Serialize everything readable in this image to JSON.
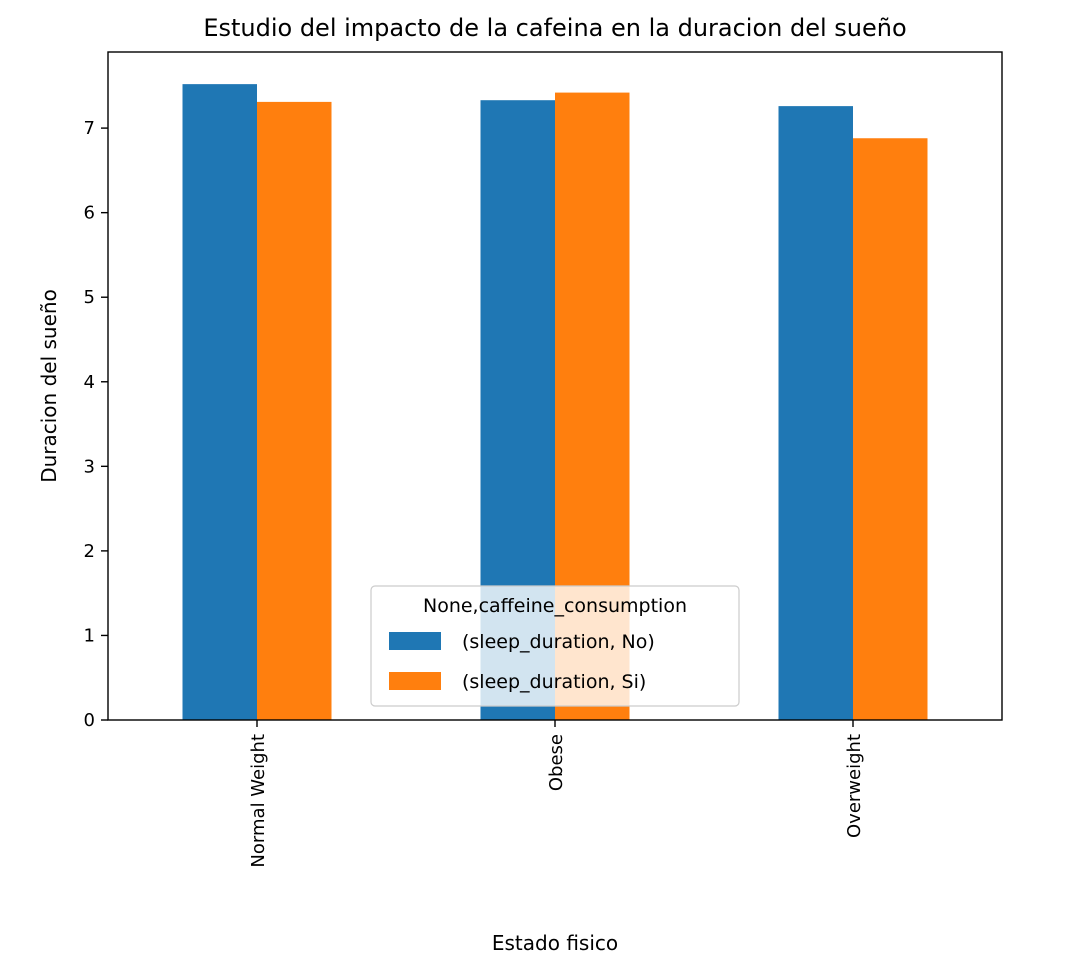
{
  "chart_data": {
    "type": "bar",
    "title": "Estudio del impacto de la cafeina en la duracion del sueño",
    "xlabel": "Estado fisico",
    "ylabel": "Duracion del sueño",
    "categories": [
      "Normal Weight",
      "Obese",
      "Overweight"
    ],
    "series": [
      {
        "name": "(sleep_duration, No)",
        "values": [
          7.52,
          7.33,
          7.26
        ],
        "color": "#1f77b4"
      },
      {
        "name": "(sleep_duration, Si)",
        "values": [
          7.31,
          7.42,
          6.88
        ],
        "color": "#ff7f0e"
      }
    ],
    "yticks": [
      0,
      1,
      2,
      3,
      4,
      5,
      6,
      7
    ],
    "ylim": [
      0,
      7.9
    ],
    "grid": false,
    "legend": {
      "title": "None,caffeine_consumption",
      "placement": "lower-center"
    }
  }
}
